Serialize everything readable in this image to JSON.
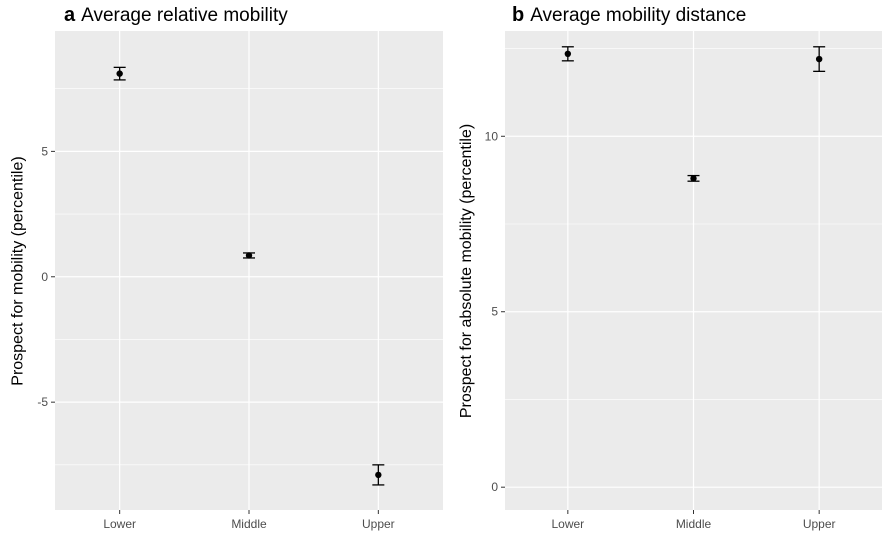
{
  "chart_data": [
    {
      "type": "scatter",
      "panel_letter": "a",
      "title": "Average relative mobility",
      "xlabel": "",
      "ylabel": "Prospect for mobility (percentile)",
      "categories": [
        "Lower",
        "Middle",
        "Upper"
      ],
      "values": [
        8.1,
        0.85,
        -7.9
      ],
      "error_low": [
        7.85,
        0.75,
        -8.3
      ],
      "error_high": [
        8.35,
        0.95,
        -7.5
      ],
      "yticks": [
        -5,
        0,
        5
      ],
      "ytick_labels": [
        "-5",
        "0",
        "5"
      ],
      "ylim": [
        -9.3,
        9.8
      ],
      "grid": true,
      "background": "#ebebeb",
      "grid_color": "#ffffff",
      "point_color": "#000000"
    },
    {
      "type": "scatter",
      "panel_letter": "b",
      "title": "Average mobility distance",
      "xlabel": "",
      "ylabel": "Prospect for absolute mobility (percentile)",
      "categories": [
        "Lower",
        "Middle",
        "Upper"
      ],
      "values": [
        12.35,
        8.8,
        12.2
      ],
      "error_low": [
        12.15,
        8.72,
        11.85
      ],
      "error_high": [
        12.55,
        8.88,
        12.55
      ],
      "yticks": [
        0,
        5,
        10
      ],
      "ytick_labels": [
        "0",
        "5",
        "10"
      ],
      "ylim": [
        -0.65,
        13.0
      ],
      "grid": true,
      "background": "#ebebeb",
      "grid_color": "#ffffff",
      "point_color": "#000000"
    }
  ]
}
